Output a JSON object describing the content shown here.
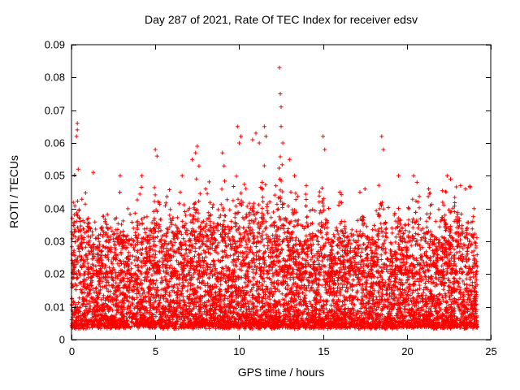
{
  "chart_data": {
    "type": "scatter",
    "title": "Day 287 of 2021, Rate Of TEC Index for receiver edsv",
    "xlabel": "GPS time / hours",
    "ylabel": "ROTI / TECUs",
    "xlim": [
      0,
      25
    ],
    "ylim": [
      0,
      0.09
    ],
    "grid": false,
    "legend": "none",
    "marker": "plus",
    "marker_color": "#ff0000",
    "axis_color": "#000000",
    "background_color": "#ffffff",
    "x_ticks": {
      "values": [
        0,
        5,
        10,
        15,
        20,
        25
      ],
      "labels": [
        "0",
        "5",
        "10",
        "15",
        "20",
        "25"
      ]
    },
    "y_ticks": {
      "values": [
        0,
        0.01,
        0.02,
        0.03,
        0.04,
        0.05,
        0.06,
        0.07,
        0.08,
        0.09
      ],
      "labels": [
        "0",
        "0.01",
        "0.02",
        "0.03",
        "0.04",
        "0.05",
        "0.06",
        "0.07",
        "0.08",
        "0.09"
      ]
    },
    "series": [
      {
        "name": "ROTI",
        "synthesis": {
          "seed": 287,
          "n_base": 7000,
          "n_mid": 900,
          "x_range": [
            0,
            24.2
          ],
          "base_floor": 0.004,
          "base_span": 0.026,
          "mid_floor": 0.02,
          "mid_span": 0.018,
          "bursts": [
            [
              0.3,
              0.25,
              0.9
            ],
            [
              1.0,
              0.3,
              0.5
            ],
            [
              2.0,
              0.4,
              0.5
            ],
            [
              3.0,
              0.4,
              0.45
            ],
            [
              4.1,
              0.3,
              0.5
            ],
            [
              5.0,
              0.3,
              0.7
            ],
            [
              5.9,
              0.3,
              0.5
            ],
            [
              6.6,
              0.3,
              0.6
            ],
            [
              7.4,
              0.35,
              0.8
            ],
            [
              8.2,
              0.3,
              0.6
            ],
            [
              9.0,
              0.35,
              0.8
            ],
            [
              10.0,
              0.4,
              1.0
            ],
            [
              10.9,
              0.35,
              0.9
            ],
            [
              11.6,
              0.3,
              0.9
            ],
            [
              12.45,
              0.3,
              1.2
            ],
            [
              13.2,
              0.35,
              0.7
            ],
            [
              14.1,
              0.3,
              0.5
            ],
            [
              15.0,
              0.3,
              0.8
            ],
            [
              16.1,
              0.3,
              0.5
            ],
            [
              17.3,
              0.3,
              0.5
            ],
            [
              18.5,
              0.3,
              0.8
            ],
            [
              19.5,
              0.3,
              0.5
            ],
            [
              20.5,
              0.35,
              0.6
            ],
            [
              21.3,
              0.3,
              0.5
            ],
            [
              22.2,
              0.3,
              0.6
            ],
            [
              23.0,
              0.35,
              0.6
            ],
            [
              23.8,
              0.3,
              0.5
            ]
          ]
        },
        "outliers": [
          [
            0.3,
            0.062
          ],
          [
            0.35,
            0.066
          ],
          [
            0.35,
            0.064
          ],
          [
            0.4,
            0.052
          ],
          [
            1.3,
            0.051
          ],
          [
            2.9,
            0.05
          ],
          [
            4.2,
            0.05
          ],
          [
            5.0,
            0.058
          ],
          [
            5.1,
            0.056
          ],
          [
            6.6,
            0.05
          ],
          [
            7.2,
            0.055
          ],
          [
            7.4,
            0.057
          ],
          [
            7.5,
            0.059
          ],
          [
            7.6,
            0.053
          ],
          [
            8.0,
            0.046
          ],
          [
            9.0,
            0.057
          ],
          [
            9.1,
            0.053
          ],
          [
            9.9,
            0.065
          ],
          [
            10.0,
            0.06
          ],
          [
            10.1,
            0.062
          ],
          [
            10.8,
            0.061
          ],
          [
            11.0,
            0.063
          ],
          [
            11.2,
            0.06
          ],
          [
            11.5,
            0.065
          ],
          [
            11.6,
            0.062
          ],
          [
            12.4,
            0.083
          ],
          [
            12.45,
            0.075
          ],
          [
            12.5,
            0.071
          ],
          [
            12.5,
            0.065
          ],
          [
            12.6,
            0.06
          ],
          [
            13.0,
            0.055
          ],
          [
            13.3,
            0.05
          ],
          [
            14.0,
            0.047
          ],
          [
            15.0,
            0.062
          ],
          [
            15.1,
            0.058
          ],
          [
            16.0,
            0.045
          ],
          [
            17.5,
            0.046
          ],
          [
            18.5,
            0.062
          ],
          [
            18.6,
            0.058
          ],
          [
            19.5,
            0.05
          ],
          [
            20.4,
            0.05
          ],
          [
            20.6,
            0.048
          ],
          [
            21.3,
            0.046
          ],
          [
            22.4,
            0.05
          ],
          [
            22.6,
            0.049
          ],
          [
            23.2,
            0.047
          ],
          [
            23.5,
            0.046
          ],
          [
            24.0,
            0.04
          ]
        ]
      }
    ]
  }
}
